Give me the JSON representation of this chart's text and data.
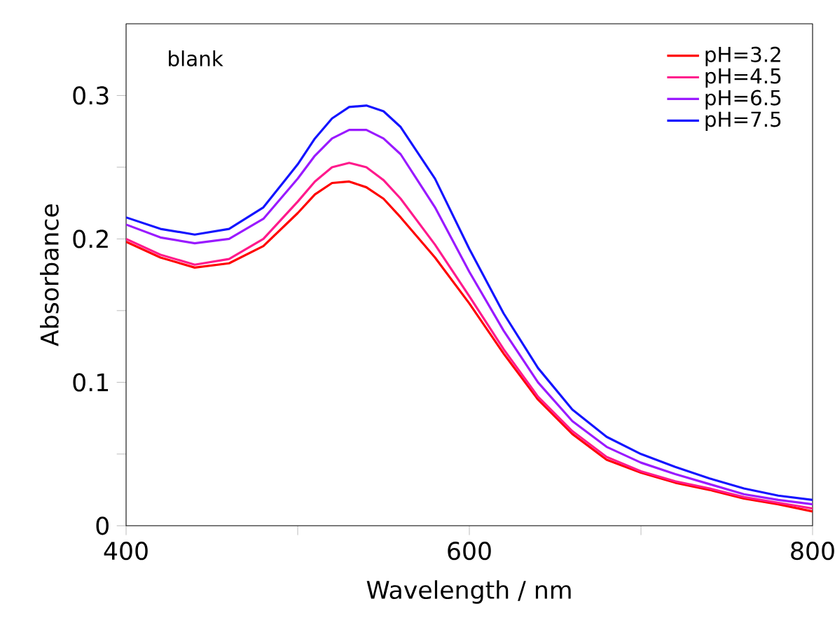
{
  "chart_data": {
    "type": "line",
    "xlabel": "Wavelength / nm",
    "ylabel": "Absorbance",
    "annotations": [
      "blank"
    ],
    "xlim": [
      400,
      800
    ],
    "ylim": [
      0,
      0.35
    ],
    "xticks": [
      400,
      {
        "value": 500,
        "label": null
      },
      600,
      {
        "value": 700,
        "label": null
      },
      800
    ],
    "yticks": [
      0,
      {
        "value": 0.05,
        "label": null
      },
      0.1,
      {
        "value": 0.15,
        "label": null
      },
      0.2,
      {
        "value": 0.25,
        "label": null
      },
      0.3
    ],
    "legend": "top right",
    "grid": false,
    "marker": "none",
    "line_style": "solid",
    "x": [
      400,
      420,
      440,
      460,
      480,
      500,
      510,
      520,
      530,
      540,
      550,
      560,
      580,
      600,
      620,
      640,
      660,
      680,
      700,
      720,
      740,
      760,
      780,
      800
    ],
    "series": [
      {
        "name": "pH=3.2",
        "color": "#ff0000",
        "values": [
          0.198,
          0.187,
          0.18,
          0.183,
          0.195,
          0.218,
          0.231,
          0.239,
          0.24,
          0.236,
          0.228,
          0.215,
          0.187,
          0.155,
          0.12,
          0.088,
          0.064,
          0.046,
          0.037,
          0.03,
          0.025,
          0.019,
          0.015,
          0.01
        ]
      },
      {
        "name": "pH=4.5",
        "color": "#ff1a8c",
        "values": [
          0.2,
          0.189,
          0.182,
          0.186,
          0.2,
          0.226,
          0.24,
          0.25,
          0.253,
          0.25,
          0.241,
          0.228,
          0.196,
          0.16,
          0.123,
          0.09,
          0.066,
          0.048,
          0.038,
          0.031,
          0.026,
          0.02,
          0.016,
          0.012
        ]
      },
      {
        "name": "pH=6.5",
        "color": "#9a1aff",
        "values": [
          0.21,
          0.201,
          0.197,
          0.2,
          0.214,
          0.242,
          0.258,
          0.27,
          0.276,
          0.276,
          0.27,
          0.259,
          0.222,
          0.177,
          0.136,
          0.1,
          0.073,
          0.055,
          0.044,
          0.036,
          0.029,
          0.022,
          0.018,
          0.015
        ]
      },
      {
        "name": "pH=7.5",
        "color": "#1414ff",
        "values": [
          0.215,
          0.207,
          0.203,
          0.207,
          0.222,
          0.252,
          0.27,
          0.284,
          0.292,
          0.293,
          0.289,
          0.278,
          0.242,
          0.193,
          0.148,
          0.11,
          0.081,
          0.062,
          0.05,
          0.041,
          0.033,
          0.026,
          0.021,
          0.018
        ]
      }
    ]
  }
}
